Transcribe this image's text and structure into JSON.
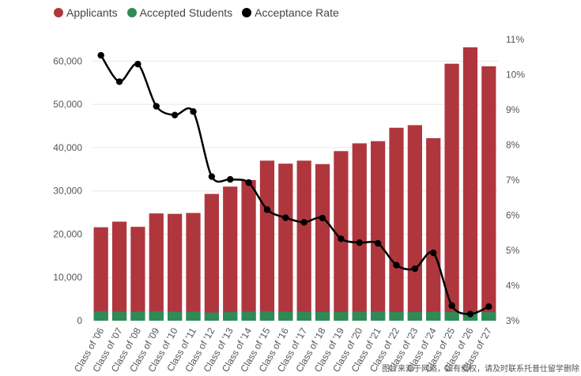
{
  "legend": {
    "applicants": "Applicants",
    "accepted": "Accepted Students",
    "rate": "Acceptance Rate"
  },
  "colors": {
    "applicants": "#b0363e",
    "accepted": "#2e8b57",
    "rate": "#000000",
    "grid": "#e6e6e6",
    "axis_text": "#555555"
  },
  "watermark": "图片来源于网络，如有侵权，请及时联系托普仕留学删除",
  "chart_data": {
    "type": "bar",
    "categories": [
      "Class of '06",
      "Class of '07",
      "Class of '08",
      "Class of '09",
      "Class of '10",
      "Class of '11",
      "Class of '12",
      "Class of '13",
      "Class of '14",
      "Class of '15",
      "Class of '16",
      "Class of '17",
      "Class of '18",
      "Class of '19",
      "Class of '20",
      "Class of '21",
      "Class of '22",
      "Class of '23",
      "Class of '24",
      "Class of '25",
      "Class of '26",
      "Class of '27"
    ],
    "series": [
      {
        "name": "Applicants",
        "type": "bar",
        "axis": "left",
        "values": [
          21600,
          22900,
          21700,
          24800,
          24700,
          24900,
          29300,
          31000,
          32500,
          37000,
          36300,
          37000,
          36200,
          39200,
          41000,
          41500,
          44600,
          45200,
          42200,
          59400,
          63200,
          58800
        ]
      },
      {
        "name": "Accepted Students",
        "type": "bar",
        "axis": "left",
        "values": [
          2200,
          2100,
          2100,
          2200,
          2100,
          2100,
          1900,
          2000,
          2100,
          2200,
          2100,
          2100,
          2000,
          2000,
          2100,
          2100,
          2000,
          2000,
          2100,
          2000,
          1950,
          1980
        ]
      },
      {
        "name": "Acceptance Rate",
        "type": "line",
        "axis": "right",
        "values": [
          10.55,
          9.8,
          10.3,
          9.1,
          8.85,
          8.95,
          7.1,
          7.02,
          6.93,
          6.16,
          5.93,
          5.8,
          5.92,
          5.33,
          5.22,
          5.2,
          4.58,
          4.48,
          4.93,
          3.43,
          3.19,
          3.4
        ]
      }
    ],
    "left_axis": {
      "ylim": [
        0,
        65000
      ],
      "ticks": [
        "0",
        "10,000",
        "20,000",
        "30,000",
        "40,000",
        "50,000",
        "60,000"
      ],
      "tick_values": [
        0,
        10000,
        20000,
        30000,
        40000,
        50000,
        60000
      ]
    },
    "right_axis": {
      "ylim": [
        3,
        11
      ],
      "ticks": [
        "3%",
        "4%",
        "5%",
        "6%",
        "7%",
        "8%",
        "9%",
        "10%",
        "11%"
      ],
      "tick_values": [
        3,
        4,
        5,
        6,
        7,
        8,
        9,
        10,
        11
      ]
    },
    "legend_position": "top-left",
    "grid": true
  }
}
